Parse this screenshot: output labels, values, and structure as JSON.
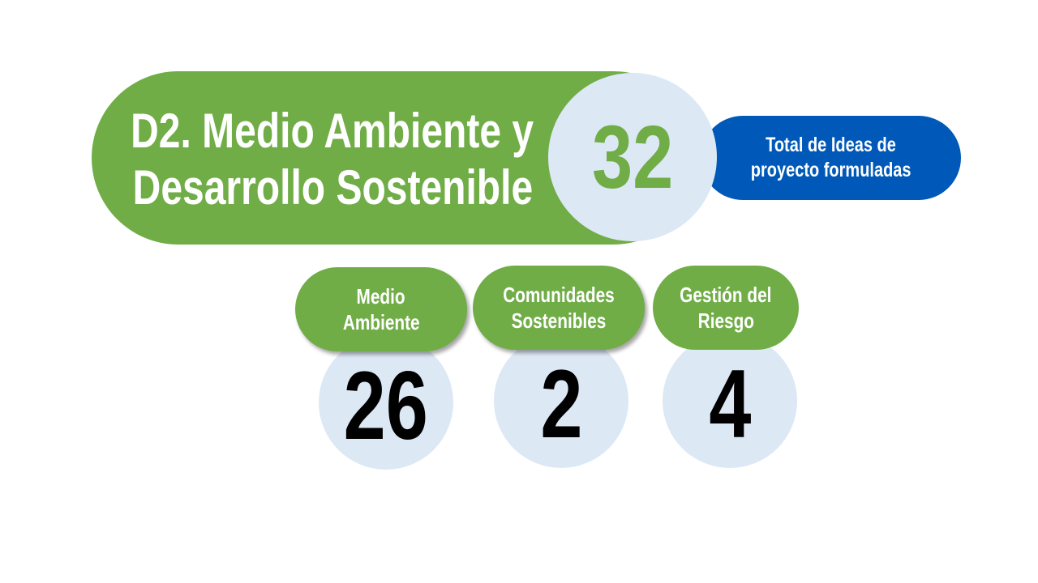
{
  "title": {
    "line1": "D2. Medio Ambiente y",
    "line2": "Desarrollo Sostenible"
  },
  "total": {
    "value": "32",
    "label_line1": "Total de Ideas de",
    "label_line2": "proyecto formuladas"
  },
  "categories": [
    {
      "label_line1": "Medio",
      "label_line2": "Ambiente",
      "value": "26"
    },
    {
      "label_line1": "Comunidades",
      "label_line2": "Sostenibles",
      "value": "2"
    },
    {
      "label_line1": "Gestión del",
      "label_line2": "Riesgo",
      "value": "4"
    }
  ],
  "colors": {
    "green": "#70ad47",
    "blue": "#0059b8",
    "light_blue": "#dde8f5",
    "number_black": "#000000"
  }
}
